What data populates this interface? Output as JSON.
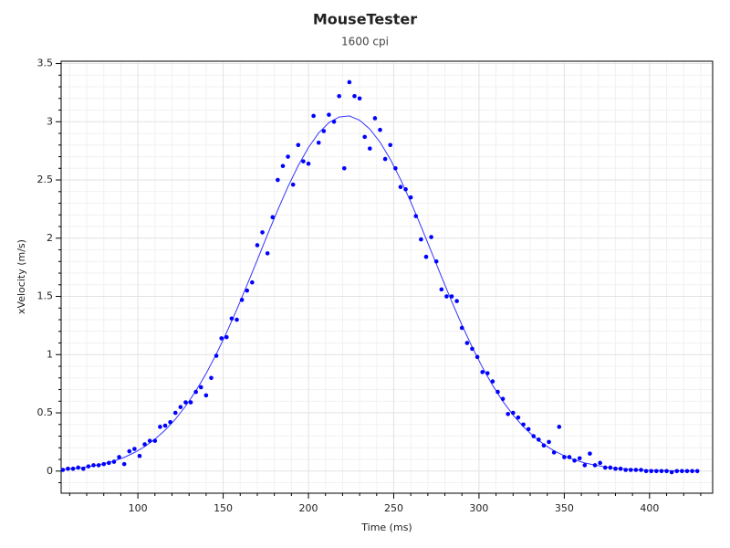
{
  "chart_data": {
    "type": "scatter",
    "title": "MouseTester",
    "subtitle": "1600 cpi",
    "x_label": "Time (ms)",
    "y_label": "xVelocity (m/s)",
    "xlim": [
      55,
      437
    ],
    "ylim": [
      -0.19,
      3.52
    ],
    "xticks": [
      100,
      150,
      200,
      250,
      300,
      350,
      400
    ],
    "yticks": [
      0,
      0.5,
      1,
      1.5,
      2,
      2.5,
      3,
      3.5
    ],
    "xticks_minor": [
      60,
      70,
      80,
      90,
      110,
      120,
      130,
      140,
      160,
      170,
      180,
      190,
      210,
      220,
      230,
      240,
      260,
      270,
      280,
      290,
      310,
      320,
      330,
      340,
      360,
      370,
      380,
      390,
      410,
      420,
      430
    ],
    "yticks_minor": [
      -0.1,
      0.1,
      0.2,
      0.3,
      0.4,
      0.6,
      0.7,
      0.8,
      0.9,
      1.1,
      1.2,
      1.3,
      1.4,
      1.6,
      1.7,
      1.8,
      1.9,
      2.1,
      2.2,
      2.3,
      2.4,
      2.6,
      2.7,
      2.8,
      2.9,
      3.1,
      3.2,
      3.3,
      3.4
    ],
    "grid": true,
    "series": [
      {
        "color": "#0000ff",
        "x": [
          56,
          59,
          62,
          65,
          68,
          71,
          74,
          77,
          80,
          83,
          86,
          89,
          92,
          95,
          98,
          101,
          104,
          107,
          110,
          113,
          116,
          119,
          122,
          125,
          128,
          131,
          134,
          137,
          140,
          143,
          146,
          149,
          152,
          155,
          158,
          161,
          164,
          167,
          170,
          173,
          176,
          179,
          182,
          185,
          188,
          191,
          194,
          197,
          200,
          203,
          206,
          209,
          212,
          215,
          218,
          221,
          224,
          227,
          230,
          233,
          236,
          239,
          242,
          245,
          248,
          251,
          254,
          257,
          260,
          263,
          266,
          269,
          272,
          275,
          278,
          281,
          284,
          287,
          290,
          293,
          296,
          299,
          302,
          305,
          308,
          311,
          314,
          317,
          320,
          323,
          326,
          329,
          332,
          335,
          338,
          341,
          344,
          347,
          350,
          353,
          356,
          359,
          362,
          365,
          368,
          371,
          374,
          377,
          380,
          383,
          386,
          389,
          392,
          395,
          398,
          401,
          404,
          407,
          410,
          413,
          416,
          419,
          422,
          425,
          428
        ],
        "values": [
          0.01,
          0.02,
          0.02,
          0.03,
          0.02,
          0.04,
          0.05,
          0.05,
          0.06,
          0.07,
          0.08,
          0.12,
          0.06,
          0.17,
          0.19,
          0.13,
          0.23,
          0.26,
          0.26,
          0.38,
          0.39,
          0.42,
          0.5,
          0.55,
          0.59,
          0.59,
          0.68,
          0.72,
          0.65,
          0.8,
          0.99,
          1.14,
          1.15,
          1.31,
          1.3,
          1.47,
          1.55,
          1.62,
          1.94,
          2.05,
          1.87,
          2.18,
          2.5,
          2.62,
          2.7,
          2.46,
          2.8,
          2.66,
          2.64,
          3.05,
          2.82,
          2.92,
          3.06,
          3.0,
          3.22,
          2.6,
          3.34,
          3.22,
          3.2,
          2.87,
          2.77,
          3.03,
          2.93,
          2.68,
          2.8,
          2.6,
          2.44,
          2.42,
          2.35,
          2.19,
          1.99,
          1.84,
          2.01,
          1.8,
          1.56,
          1.5,
          1.5,
          1.46,
          1.23,
          1.1,
          1.05,
          0.98,
          0.85,
          0.84,
          0.77,
          0.68,
          0.62,
          0.49,
          0.5,
          0.46,
          0.4,
          0.36,
          0.3,
          0.27,
          0.22,
          0.25,
          0.16,
          0.38,
          0.12,
          0.12,
          0.09,
          0.11,
          0.05,
          0.15,
          0.05,
          0.07,
          0.03,
          0.03,
          0.02,
          0.02,
          0.01,
          0.01,
          0.01,
          0.01,
          0,
          0,
          0,
          0,
          0,
          -0.01,
          0,
          0,
          0,
          0,
          0
        ]
      }
    ],
    "fit_line": {
      "color": "#3333ff",
      "x": [
        56,
        62,
        68,
        74,
        80,
        86,
        92,
        98,
        104,
        110,
        116,
        122,
        128,
        134,
        140,
        146,
        152,
        158,
        164,
        170,
        176,
        182,
        188,
        194,
        200,
        206,
        212,
        218,
        224,
        230,
        236,
        242,
        248,
        254,
        260,
        266,
        272,
        278,
        284,
        290,
        296,
        302,
        308,
        314,
        320,
        326,
        332,
        338,
        344,
        350,
        356,
        362,
        368,
        374,
        380,
        386,
        392,
        398,
        404,
        410,
        416,
        422,
        428
      ],
      "values": [
        0.015,
        0.022,
        0.032,
        0.045,
        0.063,
        0.087,
        0.118,
        0.159,
        0.21,
        0.274,
        0.352,
        0.446,
        0.558,
        0.688,
        0.837,
        1.005,
        1.189,
        1.388,
        1.598,
        1.813,
        2.031,
        2.242,
        2.442,
        2.623,
        2.779,
        2.904,
        2.992,
        3.041,
        3.05,
        3.013,
        2.937,
        2.824,
        2.678,
        2.505,
        2.311,
        2.102,
        1.886,
        1.669,
        1.457,
        1.254,
        1.064,
        0.891,
        0.736,
        0.599,
        0.481,
        0.381,
        0.298,
        0.229,
        0.174,
        0.131,
        0.097,
        0.07,
        0.051,
        0.036,
        0.025,
        0.017,
        0.011,
        0.007,
        0.005,
        0.003,
        0.002,
        0.001,
        0.001
      ]
    }
  }
}
